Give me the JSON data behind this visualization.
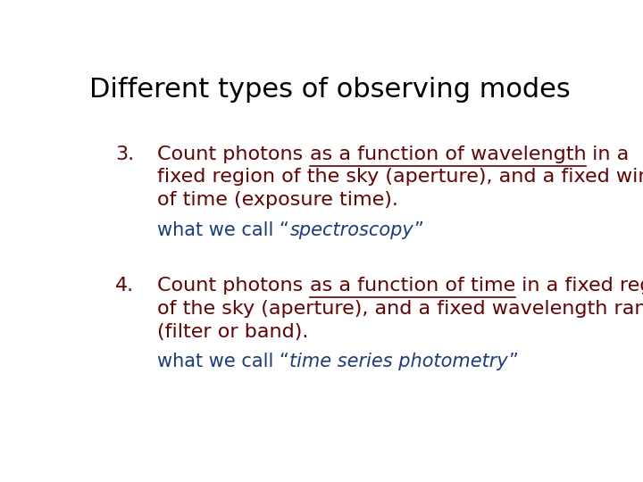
{
  "title": "Different types of observing modes",
  "title_fontsize": 22,
  "title_color": "#000000",
  "background_color": "#ffffff",
  "dark_red": "#6B0000",
  "blue": "#1a3a8a",
  "main_fontsize": 16,
  "note_fontsize": 15,
  "item3_lines": [
    "fixed region of the sky (aperture), and a fixed window",
    "of time (exposure time)."
  ],
  "item4_lines": [
    "of the sky (aperture), and a fixed wavelength range",
    "(filter or band)."
  ]
}
